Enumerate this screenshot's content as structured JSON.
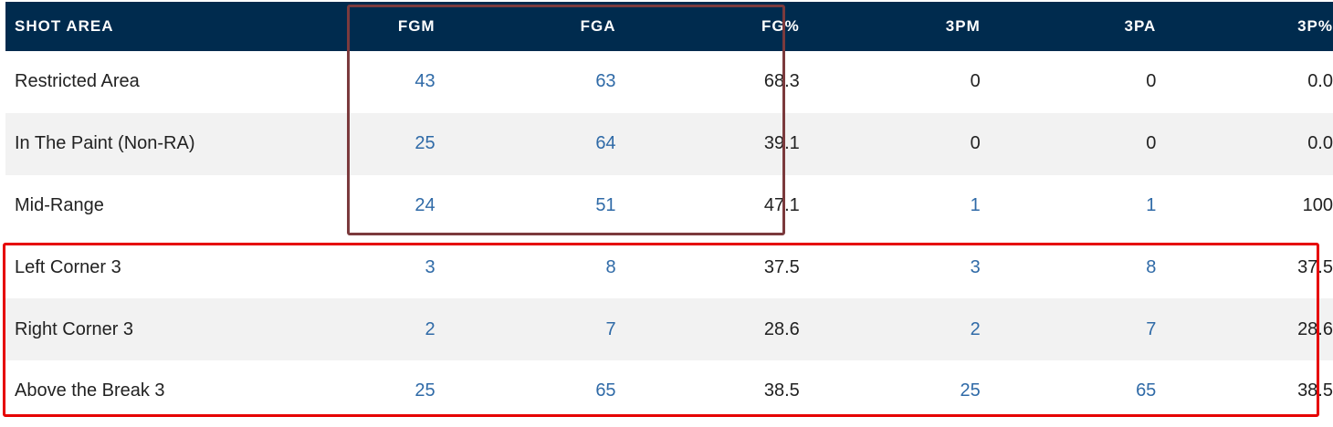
{
  "table": {
    "headers": {
      "area": "SHOT AREA",
      "fgm": "FGM",
      "fga": "FGA",
      "fgp": "FG%",
      "tpm": "3PM",
      "tpa": "3PA",
      "tpp": "3P%"
    },
    "rows": [
      {
        "area": "Restricted Area",
        "fgm": "43",
        "fga": "63",
        "fgp": "68.3",
        "tpm": "0",
        "tpa": "0",
        "tpp": "0.0"
      },
      {
        "area": "In The Paint (Non-RA)",
        "fgm": "25",
        "fga": "64",
        "fgp": "39.1",
        "tpm": "0",
        "tpa": "0",
        "tpp": "0.0"
      },
      {
        "area": "Mid-Range",
        "fgm": "24",
        "fga": "51",
        "fgp": "47.1",
        "tpm": "1",
        "tpa": "1",
        "tpp": "100"
      },
      {
        "area": "Left Corner 3",
        "fgm": "3",
        "fga": "8",
        "fgp": "37.5",
        "tpm": "3",
        "tpa": "8",
        "tpp": "37.5"
      },
      {
        "area": "Right Corner 3",
        "fgm": "2",
        "fga": "7",
        "fgp": "28.6",
        "tpm": "2",
        "tpa": "7",
        "tpp": "28.6"
      },
      {
        "area": "Above the Break 3",
        "fgm": "25",
        "fga": "65",
        "fgp": "38.5",
        "tpm": "25",
        "tpa": "65",
        "tpp": "38.5"
      }
    ]
  },
  "colors": {
    "header_bg": "#002b4e",
    "link_text": "#2f6aa7",
    "fg_box": "#7b3a3d",
    "three_box": "#e60000"
  }
}
